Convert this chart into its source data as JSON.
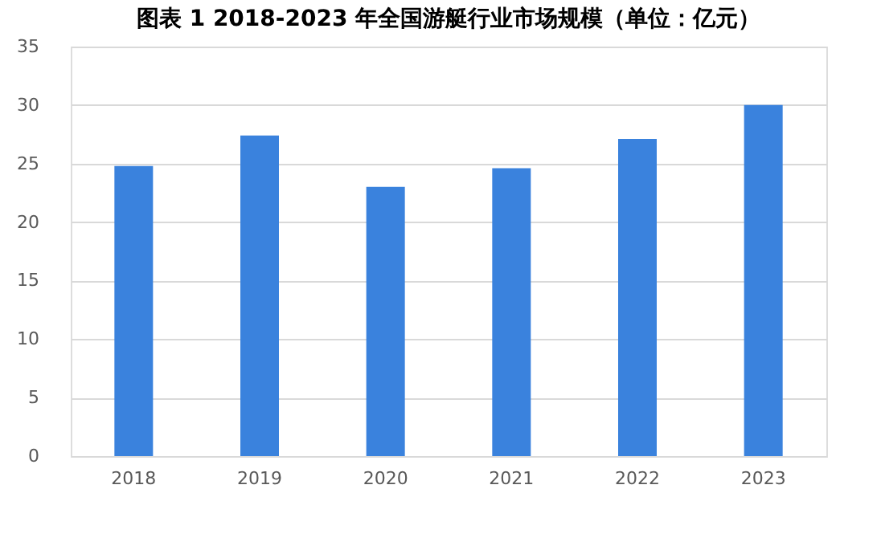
{
  "chart_data": {
    "type": "bar",
    "title": "图表 1    2018-2023 年全国游艇行业市场规模（单位：亿元）",
    "categories": [
      "2018",
      "2019",
      "2020",
      "2021",
      "2022",
      "2023"
    ],
    "values": [
      24.8,
      27.4,
      23.0,
      24.6,
      27.1,
      30.0
    ],
    "color": "#3a82dd",
    "ylim": [
      0,
      35
    ],
    "yticks": [
      0,
      5,
      10,
      15,
      20,
      25,
      30,
      35
    ],
    "grid": "y"
  }
}
